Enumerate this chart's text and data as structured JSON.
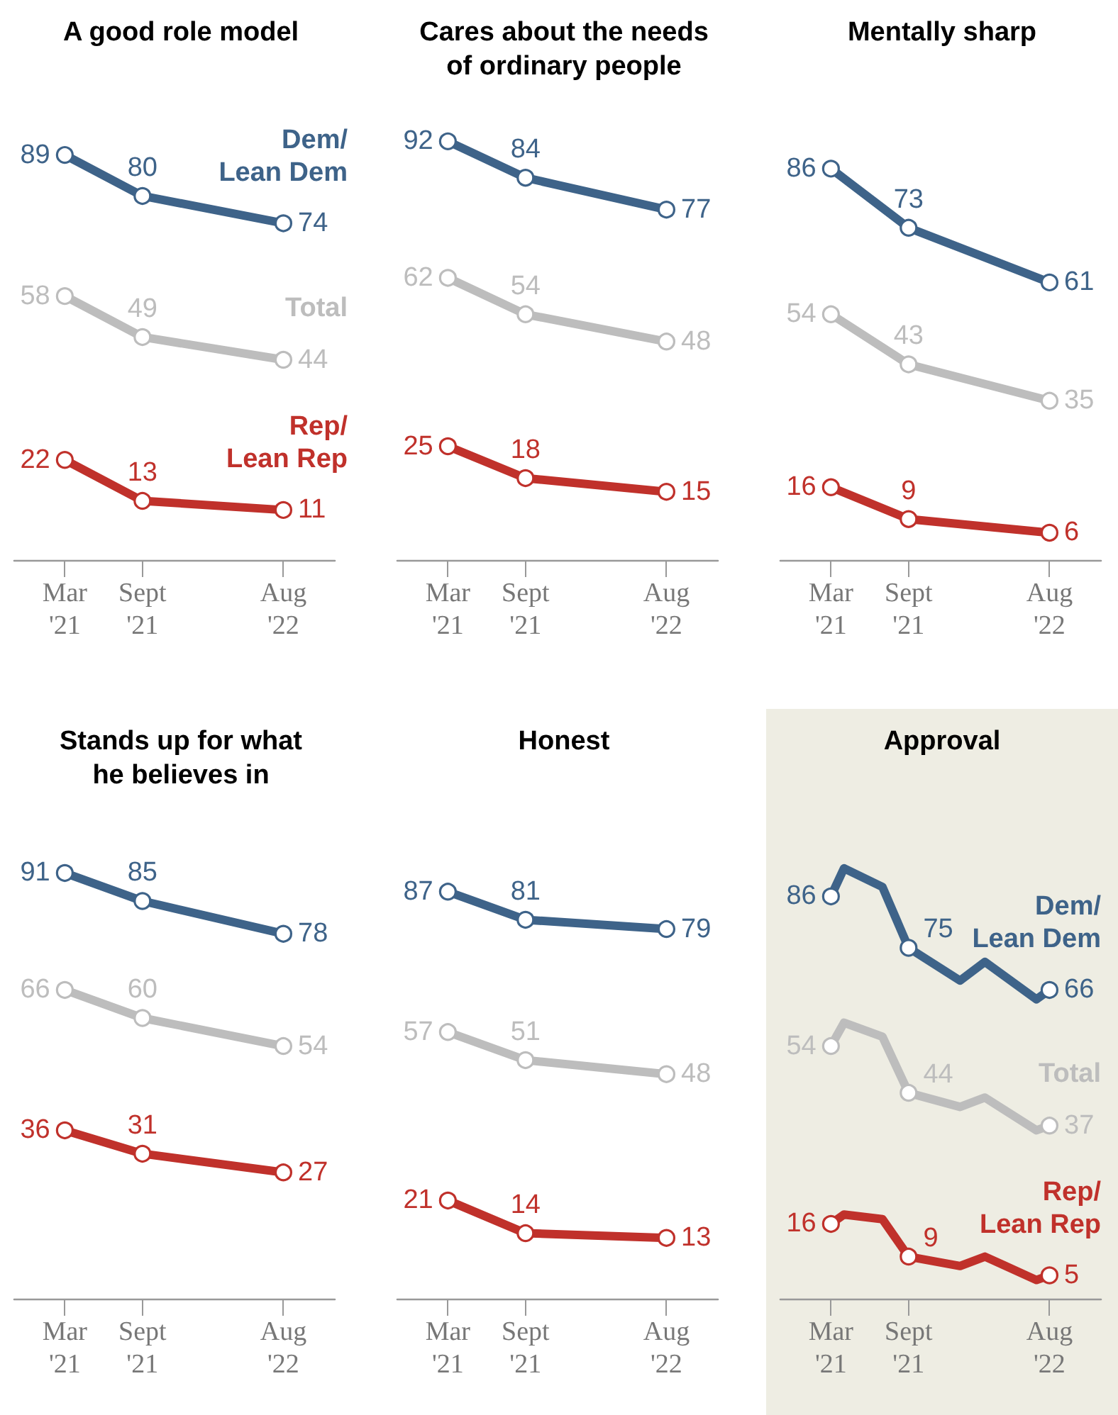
{
  "chart_data": [
    {
      "type": "line",
      "title": "A good role model",
      "marker": "circle",
      "legend": false,
      "grid": false,
      "tick_labels": "x",
      "xlim": [
        "2020-11",
        "2022-12"
      ],
      "xticks": [
        {
          "value": "2021-03",
          "label": "Mar\n'21"
        },
        {
          "value": "2021-09",
          "label": "Sept\n'21"
        },
        {
          "value": "2022-08",
          "label": "Aug\n'22"
        }
      ],
      "series": [
        {
          "name": "Dem/\nLean Dem",
          "color": "#3e6389",
          "x": [
            "2021-03",
            "2021-09",
            "2022-08"
          ],
          "values": [
            89,
            80,
            74
          ],
          "value_labels": [
            "89",
            "80",
            "74"
          ]
        },
        {
          "name": "Total",
          "color": "#bdbdbd",
          "x": [
            "2021-03",
            "2021-09",
            "2022-08"
          ],
          "values": [
            58,
            49,
            44
          ],
          "value_labels": [
            "58",
            "49",
            "44"
          ]
        },
        {
          "name": "Rep/\nLean Rep",
          "color": "#c0312b",
          "x": [
            "2021-03",
            "2021-09",
            "2022-08"
          ],
          "values": [
            22,
            13,
            11
          ],
          "value_labels": [
            "22",
            "13",
            "11"
          ]
        }
      ]
    },
    {
      "type": "line",
      "title": "Cares about the needs\nof ordinary people",
      "marker": "circle",
      "legend": false,
      "grid": false,
      "tick_labels": "x",
      "xlim": [
        "2020-11",
        "2022-12"
      ],
      "xticks": [
        {
          "value": "2021-03",
          "label": "Mar\n'21"
        },
        {
          "value": "2021-09",
          "label": "Sept\n'21"
        },
        {
          "value": "2022-08",
          "label": "Aug\n'22"
        }
      ],
      "series": [
        {
          "color": "#3e6389",
          "x": [
            "2021-03",
            "2021-09",
            "2022-08"
          ],
          "values": [
            92,
            84,
            77
          ],
          "value_labels": [
            "92",
            "84",
            "77"
          ]
        },
        {
          "color": "#bdbdbd",
          "x": [
            "2021-03",
            "2021-09",
            "2022-08"
          ],
          "values": [
            62,
            54,
            48
          ],
          "value_labels": [
            "62",
            "54",
            "48"
          ]
        },
        {
          "color": "#c0312b",
          "x": [
            "2021-03",
            "2021-09",
            "2022-08"
          ],
          "values": [
            25,
            18,
            15
          ],
          "value_labels": [
            "25",
            "18",
            "15"
          ]
        }
      ]
    },
    {
      "type": "line",
      "title": "Mentally sharp",
      "marker": "circle",
      "legend": false,
      "grid": false,
      "tick_labels": "x",
      "xlim": [
        "2020-11",
        "2022-12"
      ],
      "xticks": [
        {
          "value": "2021-03",
          "label": "Mar\n'21"
        },
        {
          "value": "2021-09",
          "label": "Sept\n'21"
        },
        {
          "value": "2022-08",
          "label": "Aug\n'22"
        }
      ],
      "series": [
        {
          "color": "#3e6389",
          "x": [
            "2021-03",
            "2021-09",
            "2022-08"
          ],
          "values": [
            86,
            73,
            61
          ],
          "value_labels": [
            "86",
            "73",
            "61"
          ]
        },
        {
          "color": "#bdbdbd",
          "x": [
            "2021-03",
            "2021-09",
            "2022-08"
          ],
          "values": [
            54,
            43,
            35
          ],
          "value_labels": [
            "54",
            "43",
            "35"
          ]
        },
        {
          "color": "#c0312b",
          "x": [
            "2021-03",
            "2021-09",
            "2022-08"
          ],
          "values": [
            16,
            9,
            6
          ],
          "value_labels": [
            "16",
            "9",
            "6"
          ]
        }
      ]
    },
    {
      "type": "line",
      "title": "Stands up for what\nhe believes in",
      "marker": "circle",
      "legend": false,
      "grid": false,
      "tick_labels": "x",
      "xlim": [
        "2020-11",
        "2022-12"
      ],
      "xticks": [
        {
          "value": "2021-03",
          "label": "Mar\n'21"
        },
        {
          "value": "2021-09",
          "label": "Sept\n'21"
        },
        {
          "value": "2022-08",
          "label": "Aug\n'22"
        }
      ],
      "series": [
        {
          "color": "#3e6389",
          "x": [
            "2021-03",
            "2021-09",
            "2022-08"
          ],
          "values": [
            91,
            85,
            78
          ],
          "value_labels": [
            "91",
            "85",
            "78"
          ]
        },
        {
          "color": "#bdbdbd",
          "x": [
            "2021-03",
            "2021-09",
            "2022-08"
          ],
          "values": [
            66,
            60,
            54
          ],
          "value_labels": [
            "66",
            "60",
            "54"
          ]
        },
        {
          "color": "#c0312b",
          "x": [
            "2021-03",
            "2021-09",
            "2022-08"
          ],
          "values": [
            36,
            31,
            27
          ],
          "value_labels": [
            "36",
            "31",
            "27"
          ]
        }
      ]
    },
    {
      "type": "line",
      "title": "Honest",
      "marker": "circle",
      "legend": false,
      "grid": false,
      "tick_labels": "x",
      "xlim": [
        "2020-11",
        "2022-12"
      ],
      "xticks": [
        {
          "value": "2021-03",
          "label": "Mar\n'21"
        },
        {
          "value": "2021-09",
          "label": "Sept\n'21"
        },
        {
          "value": "2022-08",
          "label": "Aug\n'22"
        }
      ],
      "series": [
        {
          "color": "#3e6389",
          "x": [
            "2021-03",
            "2021-09",
            "2022-08"
          ],
          "values": [
            87,
            81,
            79
          ],
          "value_labels": [
            "87",
            "81",
            "79"
          ]
        },
        {
          "color": "#bdbdbd",
          "x": [
            "2021-03",
            "2021-09",
            "2022-08"
          ],
          "values": [
            57,
            51,
            48
          ],
          "value_labels": [
            "57",
            "51",
            "48"
          ]
        },
        {
          "color": "#c0312b",
          "x": [
            "2021-03",
            "2021-09",
            "2022-08"
          ],
          "values": [
            21,
            14,
            13
          ],
          "value_labels": [
            "21",
            "14",
            "13"
          ]
        }
      ]
    },
    {
      "type": "line",
      "title": "Approval",
      "marker": "circle",
      "legend": false,
      "grid": false,
      "tick_labels": "x",
      "xlim": [
        "2020-11",
        "2022-12"
      ],
      "xticks": [
        {
          "value": "2021-03",
          "label": "Mar\n'21"
        },
        {
          "value": "2021-09",
          "label": "Sept\n'21"
        },
        {
          "value": "2022-08",
          "label": "Aug\n'22"
        }
      ],
      "series": [
        {
          "name": "Dem/\nLean Dem",
          "color": "#3e6389",
          "x": [
            "2021-03",
            "2021-04",
            "2021-07",
            "2021-09",
            "2022-01",
            "2022-03",
            "2022-07",
            "2022-08"
          ],
          "values": [
            86,
            92,
            88,
            75,
            68,
            72,
            64,
            66
          ],
          "value_labels": [
            "86",
            null,
            null,
            "75",
            null,
            null,
            null,
            "66"
          ]
        },
        {
          "name": "Total",
          "color": "#bdbdbd",
          "x": [
            "2021-03",
            "2021-04",
            "2021-07",
            "2021-09",
            "2022-01",
            "2022-03",
            "2022-07",
            "2022-08"
          ],
          "values": [
            54,
            59,
            56,
            44,
            41,
            43,
            36,
            37
          ],
          "value_labels": [
            "54",
            null,
            null,
            "44",
            null,
            null,
            null,
            "37"
          ]
        },
        {
          "name": "Rep/\nLean Rep",
          "color": "#c0312b",
          "x": [
            "2021-03",
            "2021-04",
            "2021-07",
            "2021-09",
            "2022-01",
            "2022-03",
            "2022-07",
            "2022-08"
          ],
          "values": [
            16,
            18,
            17,
            9,
            7,
            9,
            4,
            5
          ],
          "value_labels": [
            "16",
            null,
            null,
            "9",
            null,
            null,
            null,
            "5"
          ]
        }
      ]
    }
  ]
}
